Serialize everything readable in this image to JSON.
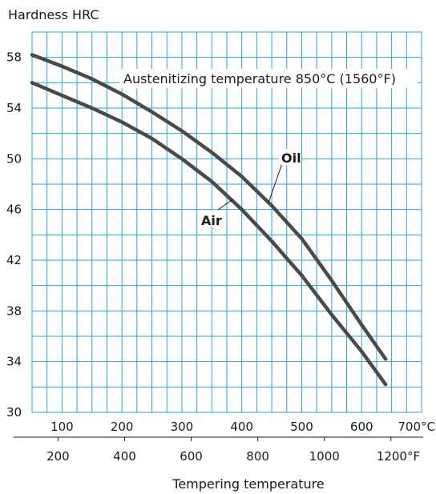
{
  "chart_data": {
    "type": "line",
    "title": "",
    "ylabel": "Hardness HRC",
    "xlabel": "Tempering temperature",
    "ylim": [
      30,
      60
    ],
    "y_ticks": [
      "30",
      "34",
      "38",
      "42",
      "46",
      "50",
      "54",
      "58"
    ],
    "y_tick_values": [
      30,
      34,
      38,
      42,
      46,
      50,
      54,
      58
    ],
    "x_celsius": {
      "range": [
        50,
        700
      ],
      "tick_values": [
        100,
        200,
        300,
        400,
        500,
        600,
        700
      ],
      "tick_labels": [
        "100",
        "200",
        "300",
        "400",
        "500",
        "600",
        "700°C"
      ]
    },
    "x_fahrenheit": {
      "range": [
        122,
        1292
      ],
      "tick_values": [
        200,
        400,
        600,
        800,
        1000,
        1200
      ],
      "tick_labels": [
        "200",
        "400",
        "600",
        "800",
        "1000",
        "1200°F"
      ]
    },
    "grid": true,
    "annotation": "Austenitizing temperature  850°C (1560°F)",
    "series": [
      {
        "name": "Oil",
        "x": [
          50,
          100,
          150,
          200,
          250,
          300,
          350,
          400,
          450,
          500,
          550,
          600,
          640
        ],
        "y": [
          58.2,
          57.3,
          56.3,
          55.1,
          53.7,
          52.2,
          50.5,
          48.6,
          46.3,
          43.7,
          40.4,
          36.9,
          34.2
        ]
      },
      {
        "name": "Air",
        "x": [
          50,
          100,
          150,
          200,
          250,
          300,
          350,
          400,
          450,
          500,
          550,
          600,
          640
        ],
        "y": [
          56.0,
          55.0,
          54.0,
          52.9,
          51.6,
          50.0,
          48.2,
          46.0,
          43.5,
          40.8,
          37.7,
          34.8,
          32.2
        ]
      }
    ]
  }
}
